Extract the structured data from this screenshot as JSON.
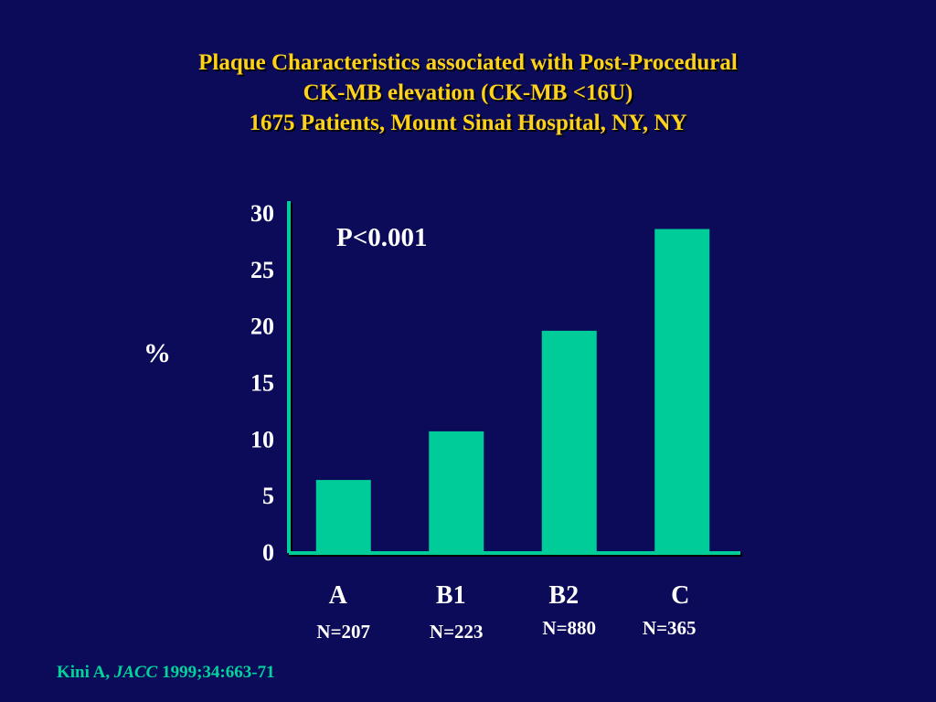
{
  "title_lines": [
    "Plaque Characteristics associated with Post-Procedural",
    "CK-MB elevation (CK-MB <16U)",
    "1675 Patients, Mount Sinai Hospital, NY, NY"
  ],
  "citation": {
    "author": "Kini A,",
    "journal": "JACC",
    "rest": "1999;34:663-71"
  },
  "colors": {
    "background": "#0b0b5a",
    "bar": "#00cc99",
    "axis": "#00cc99",
    "title": "#ffd21a",
    "text": "#ffffff"
  },
  "chart_data": {
    "type": "bar",
    "title": "",
    "ylabel": "%",
    "xlabel": "",
    "ylim": [
      0,
      30
    ],
    "yticks": [
      "0",
      "5",
      "10",
      "15",
      "20",
      "25",
      "30"
    ],
    "categories": [
      "A",
      "B1",
      "B2",
      "C"
    ],
    "sample_sizes": [
      "N=207",
      "N=223",
      "N=880",
      "N=365"
    ],
    "values": [
      6.3,
      10.6,
      19.5,
      28.5
    ],
    "annotation": "P<0.001",
    "grid": false
  }
}
